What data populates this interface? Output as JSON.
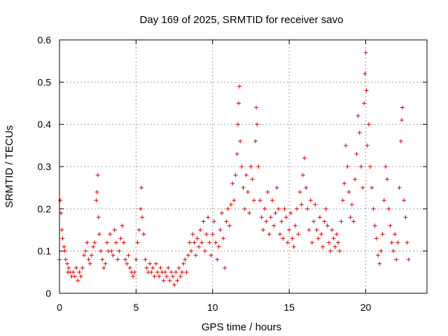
{
  "chart_data": {
    "type": "scatter",
    "title": "Day 169 of 2025, SRMTID for receiver savo",
    "xlabel": "GPS time / hours",
    "ylabel": "SRMTID / TECUs",
    "xlim": [
      0,
      24
    ],
    "ylim": [
      0,
      0.6
    ],
    "xticks": [
      "0",
      "5",
      "10",
      "15",
      "20"
    ],
    "yticks": [
      "0",
      "0.1",
      "0.2",
      "0.3",
      "0.4",
      "0.5",
      "0.6"
    ],
    "grid": true,
    "marker": "+",
    "color": "#e00000",
    "series": [
      {
        "name": "SRMTID",
        "points": [
          [
            0.0,
            0.08
          ],
          [
            0.05,
            0.22
          ],
          [
            0.1,
            0.19
          ],
          [
            0.15,
            0.15
          ],
          [
            0.2,
            0.13
          ],
          [
            0.3,
            0.11
          ],
          [
            0.35,
            0.1
          ],
          [
            0.4,
            0.08
          ],
          [
            0.5,
            0.07
          ],
          [
            0.55,
            0.05
          ],
          [
            0.6,
            0.06
          ],
          [
            0.7,
            0.05
          ],
          [
            0.8,
            0.04
          ],
          [
            0.9,
            0.05
          ],
          [
            1.0,
            0.04
          ],
          [
            1.1,
            0.06
          ],
          [
            1.2,
            0.03
          ],
          [
            1.3,
            0.05
          ],
          [
            1.4,
            0.04
          ],
          [
            1.5,
            0.06
          ],
          [
            1.6,
            0.09
          ],
          [
            1.7,
            0.1
          ],
          [
            1.8,
            0.12
          ],
          [
            1.9,
            0.08
          ],
          [
            2.0,
            0.07
          ],
          [
            2.1,
            0.09
          ],
          [
            2.2,
            0.11
          ],
          [
            2.3,
            0.12
          ],
          [
            2.4,
            0.22
          ],
          [
            2.45,
            0.24
          ],
          [
            2.5,
            0.28
          ],
          [
            2.55,
            0.18
          ],
          [
            2.6,
            0.14
          ],
          [
            2.7,
            0.1
          ],
          [
            2.8,
            0.08
          ],
          [
            2.9,
            0.06
          ],
          [
            3.0,
            0.07
          ],
          [
            3.1,
            0.12
          ],
          [
            3.2,
            0.1
          ],
          [
            3.3,
            0.14
          ],
          [
            3.4,
            0.1
          ],
          [
            3.5,
            0.09
          ],
          [
            3.6,
            0.15
          ],
          [
            3.7,
            0.12
          ],
          [
            3.8,
            0.08
          ],
          [
            3.9,
            0.1
          ],
          [
            4.0,
            0.13
          ],
          [
            4.1,
            0.16
          ],
          [
            4.2,
            0.12
          ],
          [
            4.3,
            0.08
          ],
          [
            4.4,
            0.07
          ],
          [
            4.5,
            0.09
          ],
          [
            4.6,
            0.06
          ],
          [
            4.7,
            0.05
          ],
          [
            4.8,
            0.04
          ],
          [
            4.9,
            0.05
          ],
          [
            5.0,
            0.08
          ],
          [
            5.1,
            0.12
          ],
          [
            5.2,
            0.15
          ],
          [
            5.3,
            0.2
          ],
          [
            5.35,
            0.25
          ],
          [
            5.4,
            0.18
          ],
          [
            5.5,
            0.14
          ],
          [
            5.6,
            0.08
          ],
          [
            5.7,
            0.06
          ],
          [
            5.8,
            0.05
          ],
          [
            5.9,
            0.07
          ],
          [
            6.0,
            0.05
          ],
          [
            6.1,
            0.06
          ],
          [
            6.2,
            0.04
          ],
          [
            6.3,
            0.07
          ],
          [
            6.4,
            0.05
          ],
          [
            6.5,
            0.04
          ],
          [
            6.6,
            0.06
          ],
          [
            6.7,
            0.05
          ],
          [
            6.8,
            0.03
          ],
          [
            6.9,
            0.05
          ],
          [
            7.0,
            0.04
          ],
          [
            7.1,
            0.06
          ],
          [
            7.2,
            0.03
          ],
          [
            7.3,
            0.05
          ],
          [
            7.4,
            0.04
          ],
          [
            7.5,
            0.02
          ],
          [
            7.6,
            0.05
          ],
          [
            7.7,
            0.03
          ],
          [
            7.8,
            0.06
          ],
          [
            7.9,
            0.04
          ],
          [
            8.0,
            0.05
          ],
          [
            8.1,
            0.07
          ],
          [
            8.2,
            0.08
          ],
          [
            8.3,
            0.05
          ],
          [
            8.4,
            0.09
          ],
          [
            8.5,
            0.12
          ],
          [
            8.6,
            0.1
          ],
          [
            8.7,
            0.14
          ],
          [
            8.8,
            0.12
          ],
          [
            8.9,
            0.09
          ],
          [
            9.0,
            0.13
          ],
          [
            9.1,
            0.11
          ],
          [
            9.2,
            0.15
          ],
          [
            9.3,
            0.12
          ],
          [
            9.4,
            0.17
          ],
          [
            9.5,
            0.1
          ],
          [
            9.6,
            0.14
          ],
          [
            9.7,
            0.18
          ],
          [
            9.8,
            0.12
          ],
          [
            9.9,
            0.09
          ],
          [
            10.0,
            0.14
          ],
          [
            10.1,
            0.17
          ],
          [
            10.2,
            0.12
          ],
          [
            10.3,
            0.08
          ],
          [
            10.4,
            0.11
          ],
          [
            10.5,
            0.15
          ],
          [
            10.6,
            0.19
          ],
          [
            10.7,
            0.13
          ],
          [
            10.8,
            0.06
          ],
          [
            10.9,
            0.17
          ],
          [
            11.0,
            0.2
          ],
          [
            11.1,
            0.16
          ],
          [
            11.2,
            0.21
          ],
          [
            11.3,
            0.26
          ],
          [
            11.4,
            0.22
          ],
          [
            11.5,
            0.28
          ],
          [
            11.6,
            0.33
          ],
          [
            11.65,
            0.4
          ],
          [
            11.7,
            0.45
          ],
          [
            11.75,
            0.49
          ],
          [
            11.8,
            0.36
          ],
          [
            11.9,
            0.3
          ],
          [
            12.0,
            0.25
          ],
          [
            12.1,
            0.2
          ],
          [
            12.2,
            0.28
          ],
          [
            12.3,
            0.24
          ],
          [
            12.4,
            0.19
          ],
          [
            12.5,
            0.3
          ],
          [
            12.6,
            0.27
          ],
          [
            12.7,
            0.22
          ],
          [
            12.8,
            0.36
          ],
          [
            12.85,
            0.44
          ],
          [
            12.9,
            0.4
          ],
          [
            13.0,
            0.3
          ],
          [
            13.1,
            0.22
          ],
          [
            13.2,
            0.18
          ],
          [
            13.3,
            0.15
          ],
          [
            13.4,
            0.2
          ],
          [
            13.5,
            0.17
          ],
          [
            13.6,
            0.24
          ],
          [
            13.7,
            0.14
          ],
          [
            13.8,
            0.18
          ],
          [
            13.9,
            0.22
          ],
          [
            14.0,
            0.16
          ],
          [
            14.1,
            0.19
          ],
          [
            14.2,
            0.25
          ],
          [
            14.3,
            0.2
          ],
          [
            14.4,
            0.14
          ],
          [
            14.5,
            0.17
          ],
          [
            14.6,
            0.13
          ],
          [
            14.7,
            0.2
          ],
          [
            14.8,
            0.18
          ],
          [
            14.9,
            0.12
          ],
          [
            15.0,
            0.15
          ],
          [
            15.1,
            0.19
          ],
          [
            15.2,
            0.13
          ],
          [
            15.3,
            0.11
          ],
          [
            15.4,
            0.16
          ],
          [
            15.5,
            0.2
          ],
          [
            15.6,
            0.14
          ],
          [
            15.7,
            0.24
          ],
          [
            15.8,
            0.21
          ],
          [
            15.9,
            0.28
          ],
          [
            16.0,
            0.32
          ],
          [
            16.1,
            0.25
          ],
          [
            16.2,
            0.2
          ],
          [
            16.3,
            0.15
          ],
          [
            16.4,
            0.22
          ],
          [
            16.5,
            0.12
          ],
          [
            16.6,
            0.17
          ],
          [
            16.7,
            0.21
          ],
          [
            16.8,
            0.15
          ],
          [
            16.9,
            0.13
          ],
          [
            17.0,
            0.18
          ],
          [
            17.1,
            0.14
          ],
          [
            17.2,
            0.11
          ],
          [
            17.3,
            0.17
          ],
          [
            17.4,
            0.2
          ],
          [
            17.5,
            0.16
          ],
          [
            17.6,
            0.12
          ],
          [
            17.7,
            0.1
          ],
          [
            17.8,
            0.15
          ],
          [
            17.9,
            0.13
          ],
          [
            18.0,
            0.11
          ],
          [
            18.1,
            0.14
          ],
          [
            18.2,
            0.12
          ],
          [
            18.3,
            0.1
          ],
          [
            18.4,
            0.17
          ],
          [
            18.5,
            0.22
          ],
          [
            18.6,
            0.26
          ],
          [
            18.7,
            0.35
          ],
          [
            18.8,
            0.3
          ],
          [
            18.9,
            0.24
          ],
          [
            19.0,
            0.18
          ],
          [
            19.1,
            0.21
          ],
          [
            19.2,
            0.17
          ],
          [
            19.3,
            0.27
          ],
          [
            19.4,
            0.33
          ],
          [
            19.5,
            0.42
          ],
          [
            19.6,
            0.38
          ],
          [
            19.7,
            0.3
          ],
          [
            19.8,
            0.25
          ],
          [
            19.9,
            0.45
          ],
          [
            19.95,
            0.52
          ],
          [
            20.0,
            0.57
          ],
          [
            20.05,
            0.48
          ],
          [
            20.1,
            0.35
          ],
          [
            20.2,
            0.4
          ],
          [
            20.3,
            0.3
          ],
          [
            20.4,
            0.25
          ],
          [
            20.5,
            0.2
          ],
          [
            20.6,
            0.16
          ],
          [
            20.7,
            0.13
          ],
          [
            20.8,
            0.09
          ],
          [
            20.9,
            0.07
          ],
          [
            21.0,
            0.1
          ],
          [
            21.1,
            0.14
          ],
          [
            21.2,
            0.22
          ],
          [
            21.3,
            0.3
          ],
          [
            21.4,
            0.27
          ],
          [
            21.5,
            0.2
          ],
          [
            21.6,
            0.16
          ],
          [
            21.7,
            0.12
          ],
          [
            21.8,
            0.1
          ],
          [
            21.9,
            0.14
          ],
          [
            22.0,
            0.08
          ],
          [
            22.1,
            0.12
          ],
          [
            22.2,
            0.25
          ],
          [
            22.3,
            0.36
          ],
          [
            22.35,
            0.41
          ],
          [
            22.4,
            0.44
          ],
          [
            22.5,
            0.22
          ],
          [
            22.6,
            0.18
          ],
          [
            22.7,
            0.12
          ],
          [
            22.8,
            0.08
          ]
        ]
      }
    ]
  }
}
